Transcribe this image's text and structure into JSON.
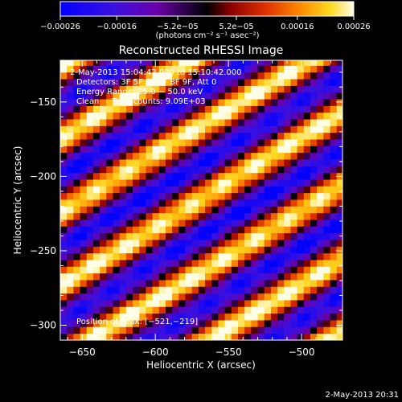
{
  "chart_data": {
    "type": "heatmap",
    "title": "Reconstructed RHESSI Image",
    "xlabel": "Heliocentric X (arcsec)",
    "ylabel": "Heliocentric Y (arcsec)",
    "xlim": [
      -665,
      -472
    ],
    "ylim": [
      -310,
      -122
    ],
    "x_ticks": [
      -650,
      -600,
      -550,
      -500
    ],
    "x_tick_labels": [
      "−650",
      "−600",
      "−550",
      "−500"
    ],
    "y_ticks": [
      -150,
      -200,
      -250,
      -300
    ],
    "y_tick_labels": [
      "−150",
      "−200",
      "−250",
      "−300"
    ],
    "colorbar": {
      "min": -0.00026,
      "max": 0.00026,
      "ticks": [
        -0.00026,
        -0.00016,
        -5.2e-05,
        5.2e-05,
        0.00016,
        0.00026
      ],
      "tick_labels": [
        "−0.00026",
        "−0.00016",
        "−5.2e−05",
        "5.2e−05",
        "0.00016",
        "0.00026"
      ],
      "unit_label": "(photons cm⁻² s⁻¹ asec⁻²)",
      "colormap": [
        "#0000ff",
        "#4a00d0",
        "#7a00a0",
        "#000000",
        "#c00000",
        "#ff6a00",
        "#ffd000",
        "#ffffe0"
      ]
    },
    "annotations": {
      "time_range": "2-May-2013 15:04:42.000 to 15:10:42.000",
      "detectors": "Detectors: 3F 5F 6F 7F 8F 9F, Att 0",
      "energy_range": "Energy Range: 25.0 − 50.0 keV",
      "method_counts": "Clean     Total counts: 9.09E+03",
      "peak_position": "Position of Peak: [−521,−219]"
    },
    "peak": {
      "x": -521,
      "y": -219
    },
    "total_counts": 9090,
    "energy_range_kev": [
      25.0,
      50.0
    ],
    "stripe_pattern": {
      "slope": 0.6,
      "stripe_spacing_y": 49,
      "bright_band_y_at_x_minus600": [
        -136,
        -185,
        -234,
        -283,
        -332
      ]
    }
  },
  "footer": {
    "date": "2-May-2013 20:31"
  }
}
